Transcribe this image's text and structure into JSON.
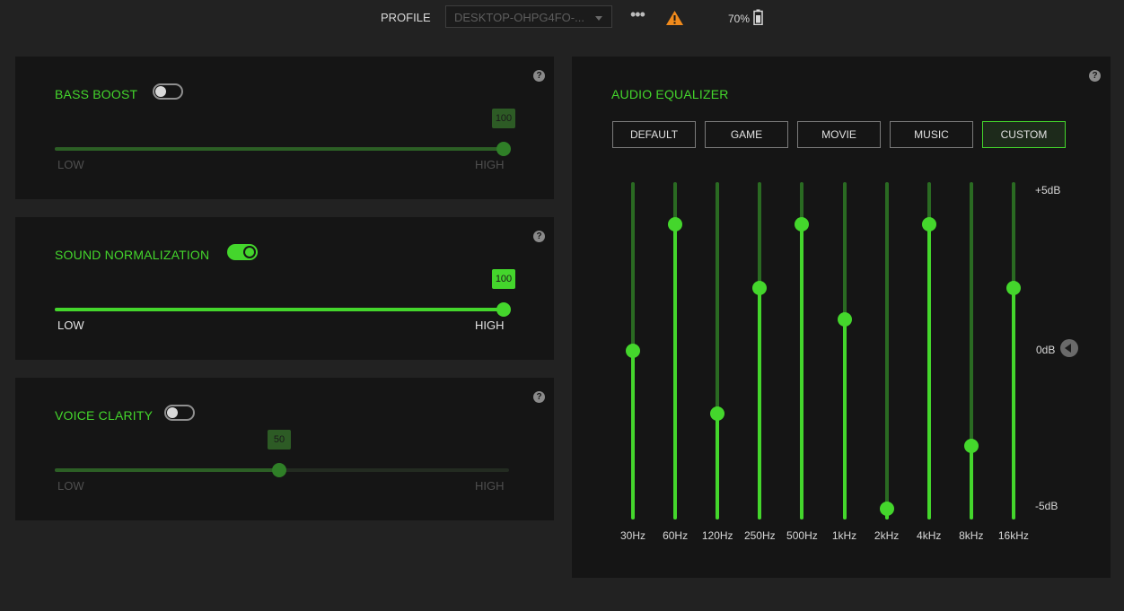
{
  "header": {
    "profile_label": "PROFILE",
    "profile_value": "DESKTOP-OHPG4FO-...",
    "more_icon": "more-horizontal-icon",
    "warning_icon": "warning-triangle-icon",
    "battery_percent": "70%",
    "battery_icon": "battery-icon"
  },
  "bass_boost": {
    "title": "BASS BOOST",
    "enabled": false,
    "value": 100,
    "value_label": "100",
    "low_label": "LOW",
    "high_label": "HIGH",
    "help": "?"
  },
  "sound_normalization": {
    "title": "SOUND NORMALIZATION",
    "enabled": true,
    "value": 100,
    "value_label": "100",
    "low_label": "LOW",
    "high_label": "HIGH",
    "help": "?"
  },
  "voice_clarity": {
    "title": "VOICE CLARITY",
    "enabled": false,
    "value": 50,
    "value_label": "50",
    "low_label": "LOW",
    "high_label": "HIGH",
    "help": "?"
  },
  "equalizer": {
    "title": "AUDIO EQUALIZER",
    "help": "?",
    "presets": [
      "DEFAULT",
      "GAME",
      "MOVIE",
      "MUSIC",
      "CUSTOM"
    ],
    "selected_preset": "CUSTOM",
    "db_max_label": "+5dB",
    "db_mid_label": "0dB",
    "db_min_label": "-5dB",
    "db_range": [
      -5,
      5
    ],
    "bands": [
      {
        "freq": "30Hz",
        "db": 0
      },
      {
        "freq": "60Hz",
        "db": 4
      },
      {
        "freq": "120Hz",
        "db": -2
      },
      {
        "freq": "250Hz",
        "db": 2
      },
      {
        "freq": "500Hz",
        "db": 4
      },
      {
        "freq": "1kHz",
        "db": 1
      },
      {
        "freq": "2kHz",
        "db": -5
      },
      {
        "freq": "4kHz",
        "db": 4
      },
      {
        "freq": "8kHz",
        "db": -3
      },
      {
        "freq": "16kHz",
        "db": 2
      }
    ]
  },
  "colors": {
    "accent": "#44d62c",
    "panel": "#151515",
    "background": "#222222"
  }
}
